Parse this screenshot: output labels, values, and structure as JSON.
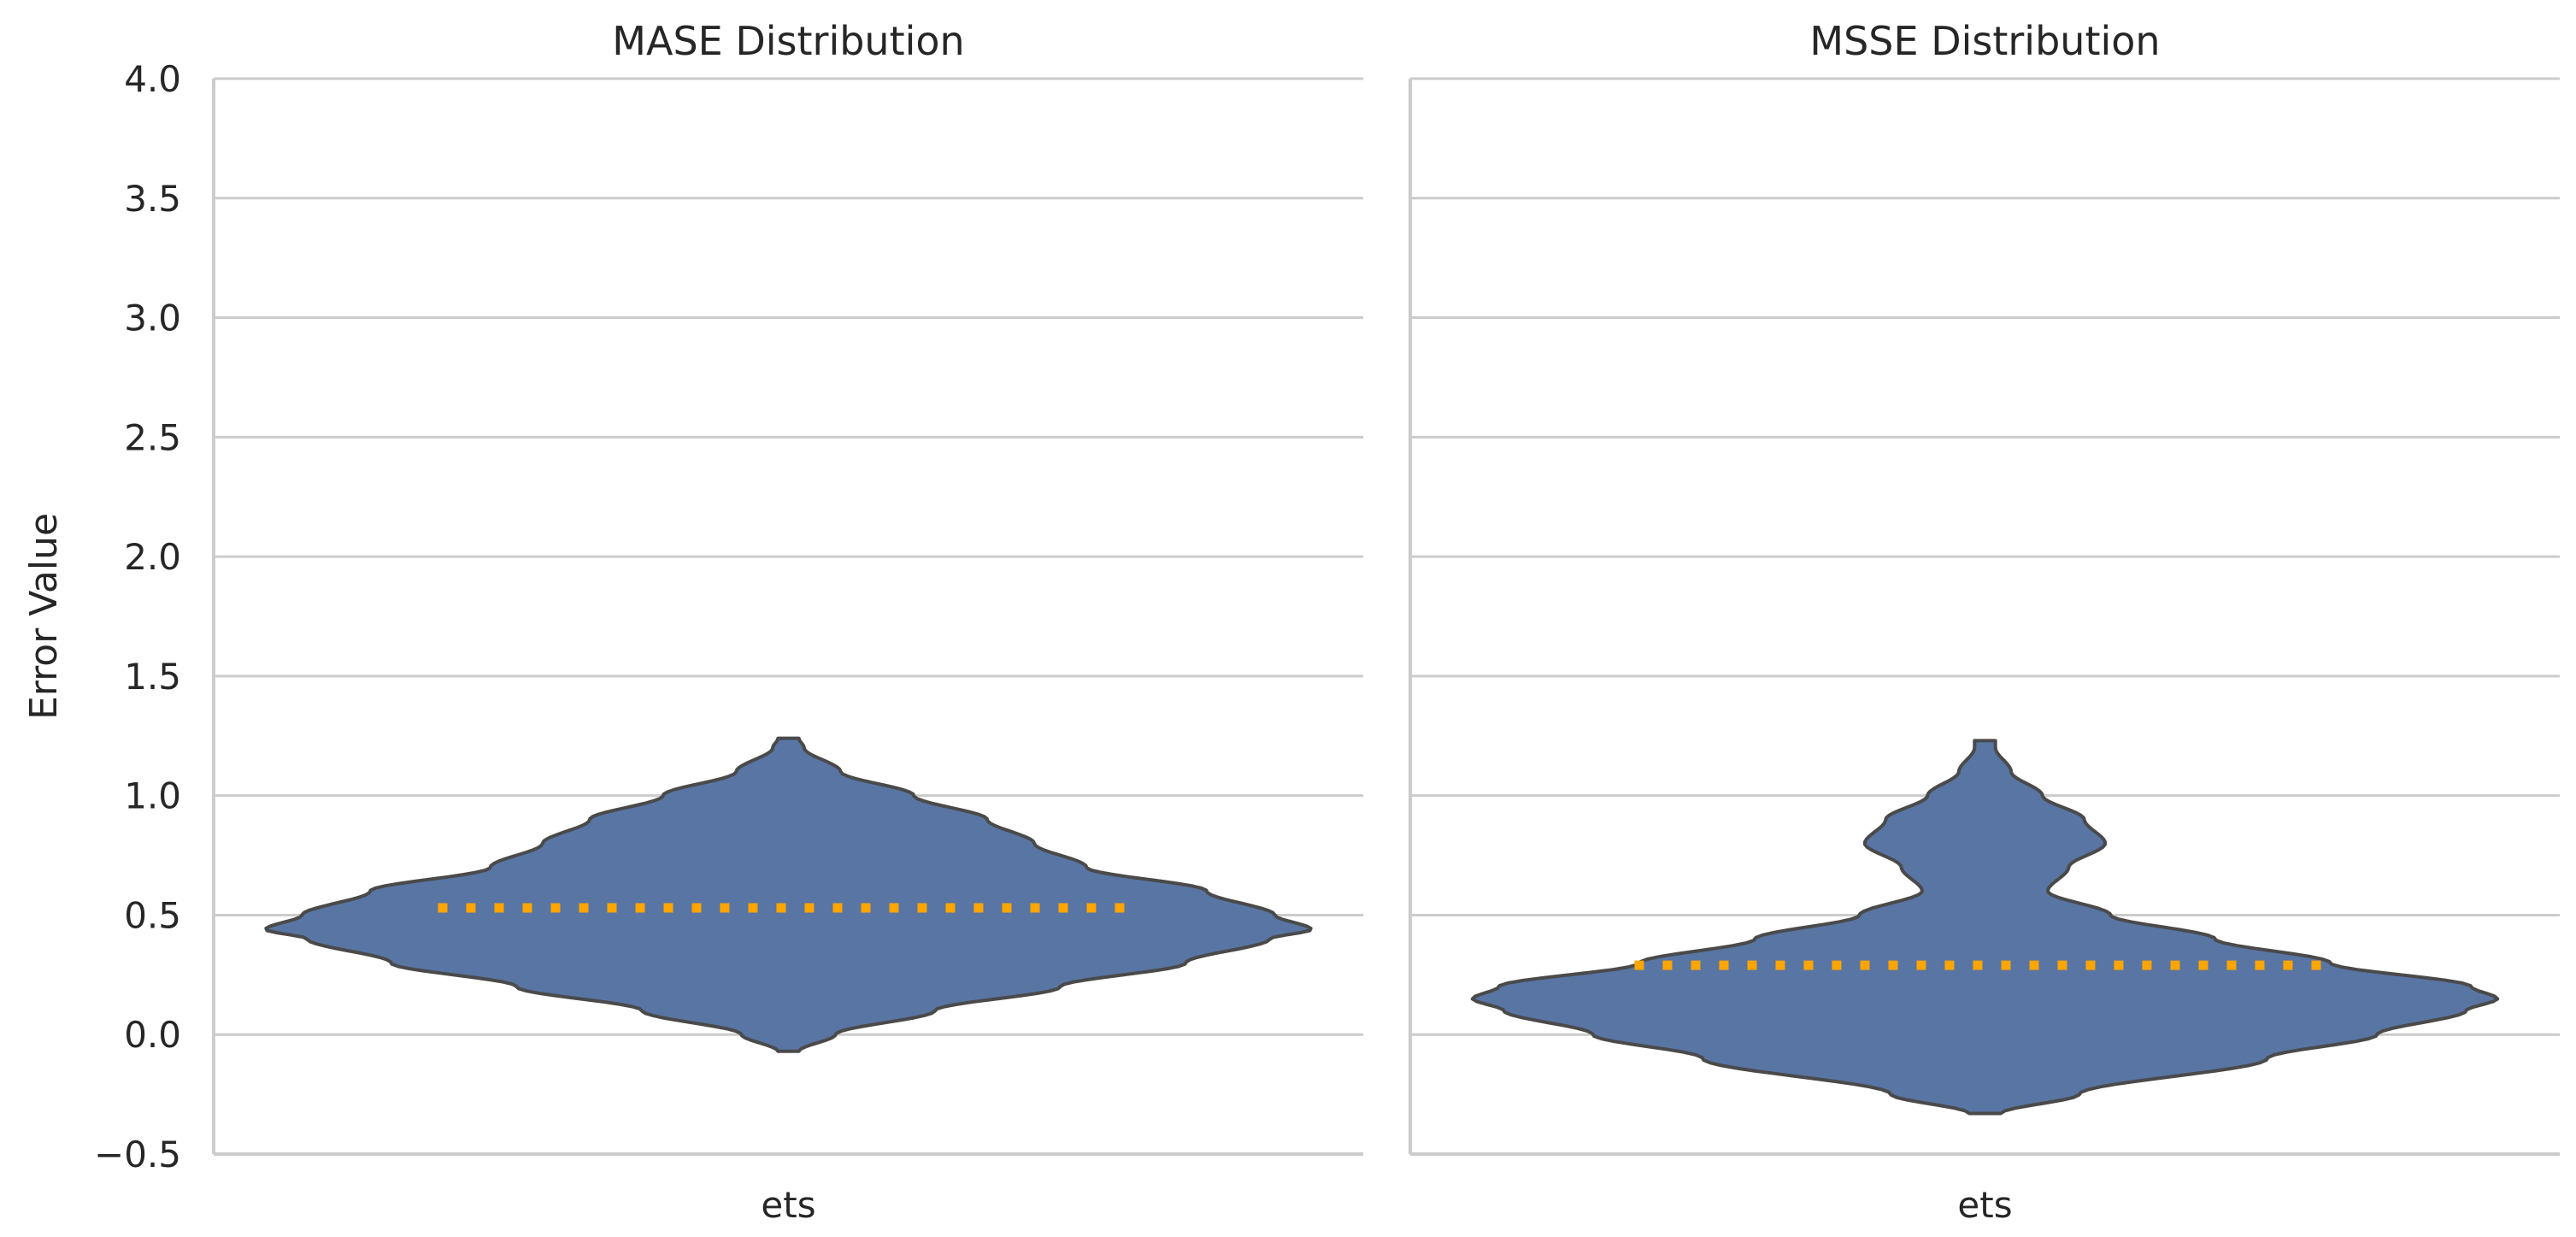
{
  "figure": {
    "ylabel": "Error Value"
  },
  "chart_data": [
    {
      "type": "violin",
      "title": "MASE Distribution",
      "categories": [
        "ets"
      ],
      "ylabel": "Error Value",
      "xlabel": "",
      "ylim": [
        -0.5,
        4.0
      ],
      "yticks": [
        "−0.5",
        "0.0",
        "0.5",
        "1.0",
        "1.5",
        "2.0",
        "2.5",
        "3.0",
        "3.5",
        "4.0"
      ],
      "ytick_values": [
        -0.5,
        0.0,
        0.5,
        1.0,
        1.5,
        2.0,
        2.5,
        3.0,
        3.5,
        4.0
      ],
      "grid": true,
      "fill_color": "#5875a4",
      "edge_color": "#4a4a4a",
      "mean_line_color": "#ffa500",
      "y_range": [
        -0.07,
        1.24
      ],
      "mean": 0.53,
      "density_profile": [
        [
          -0.07,
          0.02
        ],
        [
          0.0,
          0.09
        ],
        [
          0.1,
          0.28
        ],
        [
          0.2,
          0.52
        ],
        [
          0.3,
          0.76
        ],
        [
          0.4,
          0.92
        ],
        [
          0.44,
          1.0
        ],
        [
          0.5,
          0.93
        ],
        [
          0.6,
          0.8
        ],
        [
          0.7,
          0.57
        ],
        [
          0.8,
          0.47
        ],
        [
          0.9,
          0.38
        ],
        [
          1.0,
          0.24
        ],
        [
          1.1,
          0.1
        ],
        [
          1.2,
          0.03
        ],
        [
          1.24,
          0.02
        ]
      ]
    },
    {
      "type": "violin",
      "title": "MSSE Distribution",
      "categories": [
        "ets"
      ],
      "xlabel": "",
      "ylim": [
        -0.5,
        4.0
      ],
      "grid": true,
      "fill_color": "#5875a4",
      "edge_color": "#4a4a4a",
      "mean_line_color": "#ffa500",
      "y_range": [
        -0.33,
        1.23
      ],
      "mean": 0.29,
      "density_profile": [
        [
          -0.33,
          0.03
        ],
        [
          -0.25,
          0.18
        ],
        [
          -0.1,
          0.54
        ],
        [
          0.0,
          0.75
        ],
        [
          0.1,
          0.92
        ],
        [
          0.15,
          0.98
        ],
        [
          0.2,
          0.93
        ],
        [
          0.3,
          0.66
        ],
        [
          0.4,
          0.44
        ],
        [
          0.5,
          0.24
        ],
        [
          0.6,
          0.12
        ],
        [
          0.7,
          0.16
        ],
        [
          0.8,
          0.23
        ],
        [
          0.9,
          0.19
        ],
        [
          1.0,
          0.11
        ],
        [
          1.1,
          0.05
        ],
        [
          1.2,
          0.02
        ],
        [
          1.23,
          0.02
        ]
      ]
    }
  ]
}
